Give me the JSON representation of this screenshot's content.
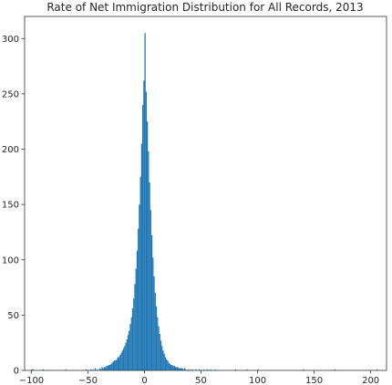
{
  "chart_data": {
    "type": "bar",
    "title": "Rate of Net Immigration Distribution for All Records, 2013",
    "xlabel": "",
    "ylabel": "",
    "xlim": [
      -106,
      214
    ],
    "ylim": [
      0,
      320
    ],
    "grid": false,
    "bar_color": "#1f77b4",
    "bin_width": 1,
    "x_ticks": [
      -100,
      -50,
      0,
      50,
      100,
      150,
      200
    ],
    "x_tick_labels": [
      "−100",
      "−50",
      "0",
      "50",
      "100",
      "150",
      "200"
    ],
    "y_ticks": [
      0,
      50,
      100,
      150,
      200,
      250,
      300
    ],
    "y_tick_labels": [
      "0",
      "50",
      "100",
      "150",
      "200",
      "250",
      "300"
    ],
    "bins": [
      {
        "x": -100,
        "count": 1
      },
      {
        "x": -99,
        "count": 1
      },
      {
        "x": -90,
        "count": 1
      },
      {
        "x": -70,
        "count": 1
      },
      {
        "x": -52,
        "count": 1
      },
      {
        "x": -48,
        "count": 1
      },
      {
        "x": -46,
        "count": 1
      },
      {
        "x": -44,
        "count": 2
      },
      {
        "x": -42,
        "count": 1
      },
      {
        "x": -40,
        "count": 2
      },
      {
        "x": -39,
        "count": 1
      },
      {
        "x": -38,
        "count": 3
      },
      {
        "x": -37,
        "count": 2
      },
      {
        "x": -36,
        "count": 3
      },
      {
        "x": -35,
        "count": 3
      },
      {
        "x": -34,
        "count": 4
      },
      {
        "x": -33,
        "count": 4
      },
      {
        "x": -32,
        "count": 5
      },
      {
        "x": -31,
        "count": 5
      },
      {
        "x": -30,
        "count": 6
      },
      {
        "x": -29,
        "count": 7
      },
      {
        "x": -28,
        "count": 8
      },
      {
        "x": -27,
        "count": 9
      },
      {
        "x": -26,
        "count": 9
      },
      {
        "x": -25,
        "count": 10
      },
      {
        "x": -24,
        "count": 12
      },
      {
        "x": -23,
        "count": 12
      },
      {
        "x": -22,
        "count": 14
      },
      {
        "x": -21,
        "count": 16
      },
      {
        "x": -20,
        "count": 18
      },
      {
        "x": -19,
        "count": 20
      },
      {
        "x": -18,
        "count": 22
      },
      {
        "x": -17,
        "count": 25
      },
      {
        "x": -16,
        "count": 28
      },
      {
        "x": -15,
        "count": 32
      },
      {
        "x": -14,
        "count": 36
      },
      {
        "x": -13,
        "count": 42
      },
      {
        "x": -12,
        "count": 48
      },
      {
        "x": -11,
        "count": 56
      },
      {
        "x": -10,
        "count": 65
      },
      {
        "x": -9,
        "count": 78
      },
      {
        "x": -8,
        "count": 92
      },
      {
        "x": -7,
        "count": 108
      },
      {
        "x": -6,
        "count": 128
      },
      {
        "x": -5,
        "count": 150
      },
      {
        "x": -4,
        "count": 175
      },
      {
        "x": -3,
        "count": 205
      },
      {
        "x": -2,
        "count": 240
      },
      {
        "x": -1,
        "count": 262
      },
      {
        "x": 0,
        "count": 305
      },
      {
        "x": 1,
        "count": 252
      },
      {
        "x": 2,
        "count": 225
      },
      {
        "x": 3,
        "count": 198
      },
      {
        "x": 4,
        "count": 170
      },
      {
        "x": 5,
        "count": 145
      },
      {
        "x": 6,
        "count": 122
      },
      {
        "x": 7,
        "count": 102
      },
      {
        "x": 8,
        "count": 85
      },
      {
        "x": 9,
        "count": 70
      },
      {
        "x": 10,
        "count": 58
      },
      {
        "x": 11,
        "count": 48
      },
      {
        "x": 12,
        "count": 40
      },
      {
        "x": 13,
        "count": 33
      },
      {
        "x": 14,
        "count": 27
      },
      {
        "x": 15,
        "count": 22
      },
      {
        "x": 16,
        "count": 18
      },
      {
        "x": 17,
        "count": 15
      },
      {
        "x": 18,
        "count": 12
      },
      {
        "x": 19,
        "count": 10
      },
      {
        "x": 20,
        "count": 9
      },
      {
        "x": 21,
        "count": 7
      },
      {
        "x": 22,
        "count": 6
      },
      {
        "x": 23,
        "count": 5
      },
      {
        "x": 24,
        "count": 5
      },
      {
        "x": 25,
        "count": 4
      },
      {
        "x": 26,
        "count": 4
      },
      {
        "x": 27,
        "count": 3
      },
      {
        "x": 28,
        "count": 3
      },
      {
        "x": 29,
        "count": 3
      },
      {
        "x": 30,
        "count": 2
      },
      {
        "x": 31,
        "count": 2
      },
      {
        "x": 32,
        "count": 2
      },
      {
        "x": 33,
        "count": 2
      },
      {
        "x": 34,
        "count": 1
      },
      {
        "x": 35,
        "count": 2
      },
      {
        "x": 36,
        "count": 1
      },
      {
        "x": 38,
        "count": 1
      },
      {
        "x": 40,
        "count": 1
      },
      {
        "x": 42,
        "count": 1
      },
      {
        "x": 45,
        "count": 1
      },
      {
        "x": 48,
        "count": 1
      },
      {
        "x": 52,
        "count": 1
      },
      {
        "x": 55,
        "count": 1
      },
      {
        "x": 58,
        "count": 1
      },
      {
        "x": 62,
        "count": 1
      },
      {
        "x": 80,
        "count": 1
      },
      {
        "x": 90,
        "count": 1
      },
      {
        "x": 100,
        "count": 1
      },
      {
        "x": 140,
        "count": 1
      },
      {
        "x": 168,
        "count": 1
      },
      {
        "x": 205,
        "count": 1
      }
    ]
  }
}
